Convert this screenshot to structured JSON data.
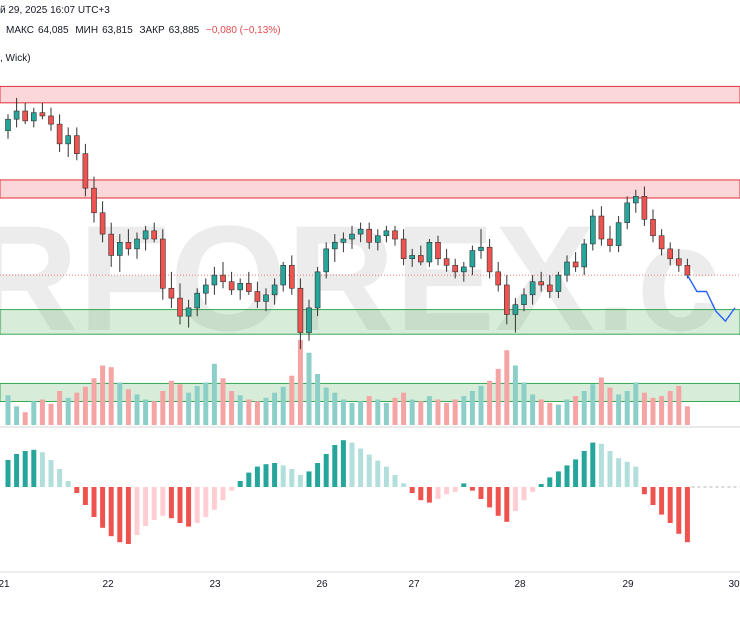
{
  "header": {
    "date_line": "й 29, 2025 16:07 UTC+3",
    "high_label": "МАКС",
    "high_value": "64,085",
    "low_label": "МИН",
    "low_value": "63,815",
    "close_label": "ЗАКР",
    "close_value": "63,885",
    "change": "−0,080 (−0,13%)",
    "indicator": ", Wick)"
  },
  "watermark": "RFOREX.c",
  "colors": {
    "up": "#26a69a",
    "down": "#ef5350",
    "vol_up": "#8ccfc8",
    "vol_down": "#f5a4a4",
    "resist_fill": "rgba(242,54,69,0.20)",
    "resist_line": "#e02f3a",
    "support_fill": "rgba(76,175,80,0.22)",
    "support_line": "#34a853",
    "forecast": "#2962ff"
  },
  "chart_data": {
    "type": "candlestick",
    "price_range": [
      62.8,
      64.75
    ],
    "x_labels": [
      "21",
      "22",
      "23",
      "26",
      "27",
      "28",
      "29",
      "30"
    ],
    "resistance_zones": [
      [
        64.55,
        64.65
      ],
      [
        63.97,
        64.08
      ]
    ],
    "support_zones": [
      [
        63.14,
        63.29
      ],
      [
        62.73,
        62.84
      ]
    ],
    "current_price": 63.5,
    "candles": [
      [
        64.38,
        64.48,
        64.33,
        64.45
      ],
      [
        64.45,
        64.58,
        64.4,
        64.5
      ],
      [
        64.5,
        64.55,
        64.42,
        64.44
      ],
      [
        64.44,
        64.52,
        64.4,
        64.49
      ],
      [
        64.49,
        64.55,
        64.45,
        64.47
      ],
      [
        64.47,
        64.52,
        64.38,
        64.42
      ],
      [
        64.42,
        64.48,
        64.25,
        64.3
      ],
      [
        64.3,
        64.4,
        64.22,
        64.35
      ],
      [
        64.35,
        64.4,
        64.2,
        64.24
      ],
      [
        64.24,
        64.3,
        63.98,
        64.03
      ],
      [
        64.03,
        64.1,
        63.82,
        63.88
      ],
      [
        63.88,
        63.95,
        63.7,
        63.75
      ],
      [
        63.75,
        63.82,
        63.55,
        63.62
      ],
      [
        63.62,
        63.75,
        63.52,
        63.7
      ],
      [
        63.7,
        63.78,
        63.62,
        63.66
      ],
      [
        63.66,
        63.76,
        63.6,
        63.72
      ],
      [
        63.72,
        63.8,
        63.65,
        63.77
      ],
      [
        63.77,
        63.82,
        63.7,
        63.72
      ],
      [
        63.72,
        63.78,
        63.35,
        63.42
      ],
      [
        63.42,
        63.52,
        63.3,
        63.36
      ],
      [
        63.36,
        63.45,
        63.2,
        63.25
      ],
      [
        63.25,
        63.35,
        63.18,
        63.3
      ],
      [
        63.3,
        63.42,
        63.25,
        63.39
      ],
      [
        63.39,
        63.48,
        63.32,
        63.44
      ],
      [
        63.44,
        63.55,
        63.38,
        63.5
      ],
      [
        63.5,
        63.58,
        63.42,
        63.46
      ],
      [
        63.46,
        63.52,
        63.38,
        63.41
      ],
      [
        63.41,
        63.48,
        63.35,
        63.45
      ],
      [
        63.45,
        63.52,
        63.38,
        63.4
      ],
      [
        63.4,
        63.46,
        63.3,
        63.34
      ],
      [
        63.34,
        63.42,
        63.28,
        63.38
      ],
      [
        63.38,
        63.48,
        63.32,
        63.44
      ],
      [
        63.44,
        63.58,
        63.4,
        63.56
      ],
      [
        63.56,
        63.62,
        63.38,
        63.42
      ],
      [
        63.42,
        63.48,
        63.05,
        63.15
      ],
      [
        63.15,
        63.35,
        63.1,
        63.3
      ],
      [
        63.3,
        63.55,
        63.25,
        63.52
      ],
      [
        63.52,
        63.7,
        63.48,
        63.66
      ],
      [
        63.66,
        63.75,
        63.58,
        63.7
      ],
      [
        63.7,
        63.76,
        63.64,
        63.72
      ],
      [
        63.72,
        63.8,
        63.66,
        63.75
      ],
      [
        63.75,
        63.82,
        63.7,
        63.78
      ],
      [
        63.78,
        63.82,
        63.66,
        63.7
      ],
      [
        63.7,
        63.78,
        63.65,
        63.74
      ],
      [
        63.74,
        63.8,
        63.7,
        63.77
      ],
      [
        63.77,
        63.8,
        63.68,
        63.72
      ],
      [
        63.72,
        63.78,
        63.56,
        63.6
      ],
      [
        63.6,
        63.66,
        63.55,
        63.62
      ],
      [
        63.62,
        63.68,
        63.56,
        63.58
      ],
      [
        63.58,
        63.72,
        63.55,
        63.7
      ],
      [
        63.7,
        63.74,
        63.56,
        63.6
      ],
      [
        63.6,
        63.66,
        63.52,
        63.56
      ],
      [
        63.56,
        63.6,
        63.48,
        63.52
      ],
      [
        63.52,
        63.58,
        63.46,
        63.55
      ],
      [
        63.55,
        63.68,
        63.5,
        63.65
      ],
      [
        63.65,
        63.78,
        63.6,
        63.67
      ],
      [
        63.67,
        63.72,
        63.48,
        63.52
      ],
      [
        63.52,
        63.58,
        63.4,
        63.44
      ],
      [
        63.44,
        63.5,
        63.2,
        63.26
      ],
      [
        63.26,
        63.36,
        63.15,
        63.32
      ],
      [
        63.32,
        63.42,
        63.28,
        63.38
      ],
      [
        63.38,
        63.5,
        63.32,
        63.46
      ],
      [
        63.46,
        63.52,
        63.4,
        63.44
      ],
      [
        63.44,
        63.5,
        63.36,
        63.4
      ],
      [
        63.4,
        63.52,
        63.36,
        63.5
      ],
      [
        63.5,
        63.62,
        63.46,
        63.58
      ],
      [
        63.58,
        63.64,
        63.52,
        63.55
      ],
      [
        63.55,
        63.72,
        63.5,
        63.69
      ],
      [
        63.69,
        63.9,
        63.65,
        63.86
      ],
      [
        63.86,
        63.92,
        63.68,
        63.72
      ],
      [
        63.72,
        63.8,
        63.64,
        63.68
      ],
      [
        63.68,
        63.86,
        63.64,
        63.82
      ],
      [
        63.82,
        63.98,
        63.78,
        63.94
      ],
      [
        63.94,
        64.02,
        63.88,
        63.98
      ],
      [
        63.98,
        64.04,
        63.8,
        63.84
      ],
      [
        63.84,
        63.9,
        63.7,
        63.74
      ],
      [
        63.74,
        63.78,
        63.62,
        63.66
      ],
      [
        63.66,
        63.7,
        63.56,
        63.6
      ],
      [
        63.6,
        63.66,
        63.52,
        63.56
      ],
      [
        63.56,
        63.6,
        63.48,
        63.5
      ]
    ],
    "volume": [
      0.35,
      0.22,
      0.15,
      0.28,
      0.3,
      0.25,
      0.4,
      0.32,
      0.38,
      0.45,
      0.55,
      0.7,
      0.68,
      0.5,
      0.42,
      0.36,
      0.3,
      0.28,
      0.4,
      0.52,
      0.48,
      0.38,
      0.46,
      0.5,
      0.72,
      0.55,
      0.4,
      0.35,
      0.3,
      0.28,
      0.32,
      0.38,
      0.45,
      0.58,
      1.0,
      0.85,
      0.6,
      0.44,
      0.38,
      0.3,
      0.26,
      0.28,
      0.34,
      0.3,
      0.26,
      0.32,
      0.38,
      0.3,
      0.28,
      0.34,
      0.3,
      0.26,
      0.3,
      0.34,
      0.4,
      0.46,
      0.52,
      0.66,
      0.88,
      0.7,
      0.5,
      0.36,
      0.3,
      0.26,
      0.24,
      0.3,
      0.34,
      0.4,
      0.48,
      0.56,
      0.44,
      0.36,
      0.4,
      0.5,
      0.38,
      0.32,
      0.34,
      0.4,
      0.46,
      0.22
    ],
    "oscillator": [
      0.45,
      0.55,
      0.6,
      0.62,
      0.58,
      0.45,
      0.3,
      0.1,
      -0.1,
      -0.3,
      -0.5,
      -0.68,
      -0.82,
      -0.92,
      -0.95,
      -0.8,
      -0.65,
      -0.55,
      -0.48,
      -0.52,
      -0.6,
      -0.66,
      -0.6,
      -0.5,
      -0.38,
      -0.22,
      -0.06,
      0.1,
      0.24,
      0.34,
      0.38,
      0.4,
      0.36,
      0.3,
      0.2,
      0.26,
      0.4,
      0.55,
      0.7,
      0.78,
      0.74,
      0.64,
      0.54,
      0.44,
      0.34,
      0.2,
      0.06,
      -0.1,
      -0.22,
      -0.26,
      -0.2,
      -0.12,
      -0.08,
      0.06,
      -0.06,
      -0.2,
      -0.34,
      -0.48,
      -0.58,
      -0.4,
      -0.22,
      -0.08,
      0.05,
      0.16,
      0.26,
      0.36,
      0.46,
      0.6,
      0.74,
      0.72,
      0.6,
      0.48,
      0.42,
      0.34,
      -0.12,
      -0.3,
      -0.46,
      -0.6,
      -0.78,
      -0.92
    ],
    "forecast": [
      63.5,
      63.4,
      63.4,
      63.28,
      63.22,
      63.3
    ]
  }
}
